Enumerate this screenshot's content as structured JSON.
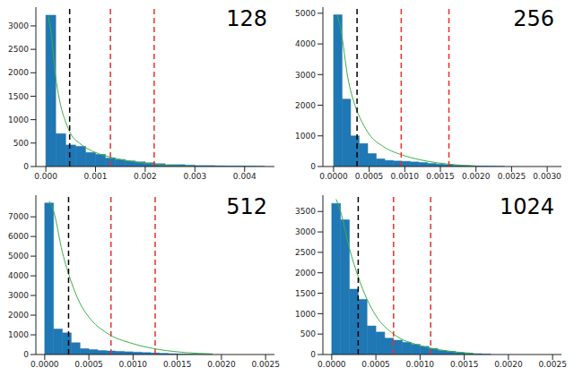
{
  "chart_data": [
    {
      "type": "histogram",
      "annotation": "128",
      "color": "#1f77b4",
      "bins": [
        0,
        0.0002,
        0.0004,
        0.0006,
        0.0008,
        0.001,
        0.0012,
        0.0014,
        0.0016,
        0.0018,
        0.002,
        0.0022,
        0.0024,
        0.0026,
        0.0028,
        0.003,
        0.0032,
        0.0034,
        0.0036,
        0.0038,
        0.004,
        0.0042,
        0.0044
      ],
      "counts": [
        3230,
        700,
        460,
        430,
        300,
        260,
        180,
        150,
        120,
        100,
        80,
        60,
        40,
        40,
        30,
        20,
        20,
        15,
        10,
        10,
        8,
        5
      ],
      "curve": {
        "color": "#3cb043",
        "x": [
          5e-05,
          0.0001,
          0.0002,
          0.0003,
          0.0004,
          0.0005,
          0.0007,
          0.001,
          0.0013,
          0.0016,
          0.002,
          0.0025,
          0.003
        ],
        "values": [
          3200,
          2900,
          1900,
          1300,
          950,
          700,
          480,
          300,
          200,
          130,
          70,
          20,
          5
        ]
      },
      "vlines": [
        {
          "x": 0.00048,
          "color": "#000000",
          "line_style": "dashed"
        },
        {
          "x": 0.0013,
          "color": "#e8312a",
          "line_style": "dashed"
        },
        {
          "x": 0.00218,
          "color": "#e8312a",
          "line_style": "dashed"
        }
      ],
      "xlim": [
        -0.0002,
        0.0046
      ],
      "xticks": [
        {
          "value": 0,
          "label": "0.000"
        },
        0.001,
        0.002,
        0.003,
        0.004
      ],
      "ylim": [
        0,
        3400
      ],
      "yticks": [
        0,
        500,
        1000,
        1500,
        2000,
        2500,
        3000
      ]
    },
    {
      "type": "histogram",
      "annotation": "256",
      "color": "#1f77b4",
      "bins": [
        0,
        0.00012,
        0.00024,
        0.00036,
        0.00048,
        0.0006,
        0.00072,
        0.00084,
        0.00096,
        0.00108,
        0.0012,
        0.00132,
        0.00144,
        0.00156,
        0.00168,
        0.0018,
        0.00192,
        0.00204,
        0.00216,
        0.00228,
        0.0024
      ],
      "counts": [
        4950,
        2200,
        1000,
        750,
        420,
        250,
        200,
        180,
        170,
        150,
        130,
        100,
        80,
        60,
        40,
        30,
        20,
        15,
        10,
        5
      ],
      "curve": {
        "color": "#3cb043",
        "x": [
          5e-05,
          0.0001,
          0.0002,
          0.0003,
          0.0004,
          0.0005,
          0.0007,
          0.001,
          0.0013,
          0.0016,
          0.002
        ],
        "values": [
          4950,
          4500,
          2900,
          2000,
          1450,
          1050,
          650,
          350,
          180,
          80,
          20
        ]
      },
      "vlines": [
        {
          "x": 0.00033,
          "color": "#000000",
          "line_style": "dashed"
        },
        {
          "x": 0.00095,
          "color": "#e8312a",
          "line_style": "dashed"
        },
        {
          "x": 0.00162,
          "color": "#e8312a",
          "line_style": "dashed"
        }
      ],
      "xlim": [
        -0.00015,
        0.0032
      ],
      "xticks": [
        {
          "value": 0,
          "label": "0.0000"
        },
        0.0005,
        {
          "value": 0.001,
          "label": "0.0010"
        },
        0.0015,
        {
          "value": 0.002,
          "label": "0.0020"
        },
        0.0025,
        {
          "value": 0.003,
          "label": "0.0030"
        }
      ],
      "ylim": [
        0,
        5200
      ],
      "yticks": [
        0,
        1000,
        2000,
        3000,
        4000,
        5000
      ]
    },
    {
      "type": "histogram",
      "annotation": "512",
      "color": "#1f77b4",
      "bins": [
        0,
        0.0001,
        0.0002,
        0.0003,
        0.0004,
        0.0005,
        0.0006,
        0.0007,
        0.0008,
        0.0009,
        0.001,
        0.0011,
        0.0012,
        0.0013,
        0.0014,
        0.0015,
        0.0016,
        0.0017,
        0.0018,
        0.0019
      ],
      "counts": [
        7700,
        1300,
        1100,
        600,
        300,
        250,
        200,
        180,
        160,
        140,
        120,
        100,
        80,
        60,
        40,
        30,
        20,
        10,
        5
      ],
      "curve": {
        "color": "#3cb043",
        "x": [
          5e-05,
          0.0001,
          0.0002,
          0.0003,
          0.0004,
          0.0005,
          0.0007,
          0.001,
          0.0013,
          0.0016,
          0.0019
        ],
        "values": [
          7800,
          7300,
          5200,
          3700,
          2600,
          1900,
          1100,
          550,
          250,
          100,
          30
        ]
      },
      "vlines": [
        {
          "x": 0.00027,
          "color": "#000000",
          "line_style": "dashed"
        },
        {
          "x": 0.00075,
          "color": "#e8312a",
          "line_style": "dashed"
        },
        {
          "x": 0.00125,
          "color": "#e8312a",
          "line_style": "dashed"
        }
      ],
      "xlim": [
        -0.0001,
        0.0026
      ],
      "xticks": [
        {
          "value": 0,
          "label": "0.0000"
        },
        0.0005,
        {
          "value": 0.001,
          "label": "0.0010"
        },
        0.0015,
        {
          "value": 0.002,
          "label": "0.0020"
        },
        0.0025
      ],
      "ylim": [
        0,
        8100
      ],
      "yticks": [
        0,
        1000,
        2000,
        3000,
        4000,
        5000,
        6000,
        7000
      ]
    },
    {
      "type": "histogram",
      "annotation": "1024",
      "color": "#1f77b4",
      "bins": [
        0,
        0.0001,
        0.0002,
        0.0003,
        0.0004,
        0.0005,
        0.0006,
        0.0007,
        0.0008,
        0.0009,
        0.001,
        0.0011,
        0.0012,
        0.0013,
        0.0014,
        0.0015,
        0.0016,
        0.0017,
        0.0018
      ],
      "counts": [
        3700,
        3300,
        1600,
        1350,
        700,
        550,
        400,
        350,
        300,
        250,
        200,
        150,
        100,
        80,
        50,
        30,
        20,
        10
      ],
      "curve": {
        "color": "#3cb043",
        "x": [
          5e-05,
          0.0001,
          0.0002,
          0.0003,
          0.0004,
          0.0005,
          0.0007,
          0.001,
          0.0013,
          0.0016
        ],
        "values": [
          3800,
          3500,
          2600,
          1900,
          1350,
          950,
          500,
          220,
          90,
          30
        ]
      },
      "vlines": [
        {
          "x": 0.0003,
          "color": "#000000",
          "line_style": "dashed"
        },
        {
          "x": 0.0007,
          "color": "#e8312a",
          "line_style": "dashed"
        },
        {
          "x": 0.00112,
          "color": "#e8312a",
          "line_style": "dashed"
        }
      ],
      "xlim": [
        -0.0001,
        0.0026
      ],
      "xticks": [
        {
          "value": 0,
          "label": "0.0000"
        },
        0.0005,
        {
          "value": 0.001,
          "label": "0.0010"
        },
        0.0015,
        {
          "value": 0.002,
          "label": "0.0020"
        },
        0.0025
      ],
      "ylim": [
        0,
        3900
      ],
      "yticks": [
        0,
        500,
        1000,
        1500,
        2000,
        2500,
        3000,
        3500
      ]
    }
  ]
}
